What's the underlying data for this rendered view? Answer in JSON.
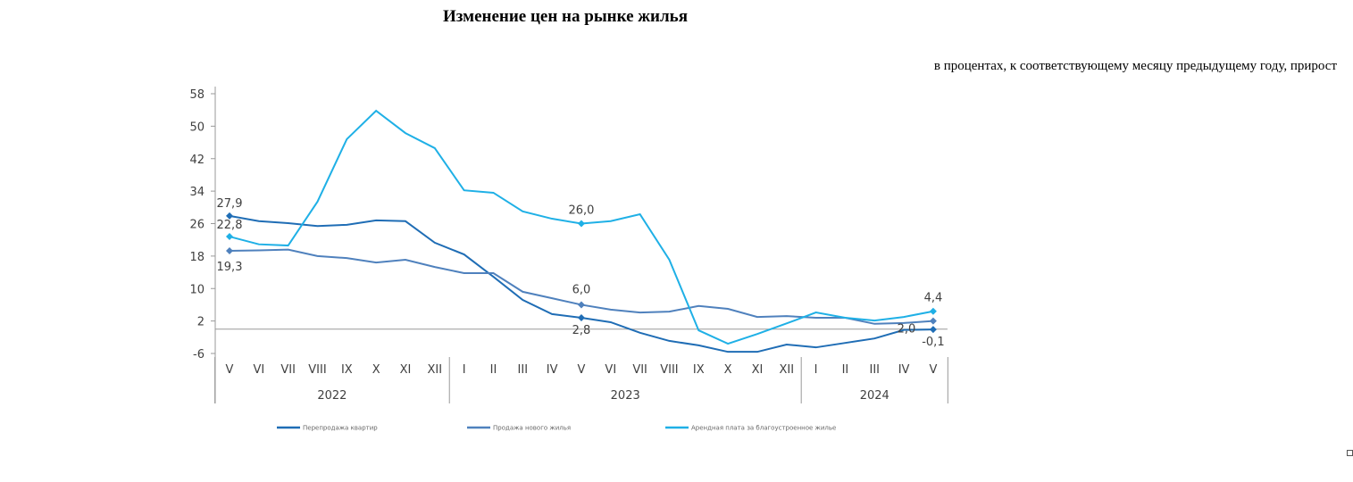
{
  "chart_data": {
    "type": "line",
    "title": "Изменение цен на рынке жилья",
    "subtitle": "в процентах, к соответствующему месяцу предыдущему году, прирост",
    "x": [
      "V",
      "VI",
      "VII",
      "VIII",
      "IX",
      "X",
      "XI",
      "XII",
      "I",
      "II",
      "III",
      "IV",
      "V",
      "VI",
      "VII",
      "VIII",
      "IX",
      "X",
      "XI",
      "XII",
      "I",
      "II",
      "III",
      "IV",
      "V"
    ],
    "year_groups": [
      {
        "label": "2022",
        "count": 8
      },
      {
        "label": "2023",
        "count": 12
      },
      {
        "label": "2024",
        "count": 5
      }
    ],
    "ylim": [
      -6,
      58
    ],
    "yticks": [
      -6,
      2,
      10,
      18,
      26,
      34,
      42,
      50,
      58
    ],
    "grid": false,
    "legend": "bottom",
    "series": [
      {
        "name": "Перепродажа квартир",
        "color": "#1f6db5",
        "values": [
          27.9,
          26.6,
          26.1,
          25.4,
          25.7,
          26.8,
          26.6,
          21.3,
          18.4,
          12.9,
          7.2,
          3.7,
          2.8,
          1.7,
          -0.9,
          -2.9,
          -4.0,
          -5.6,
          -5.6,
          -3.8,
          -4.5,
          -3.4,
          -2.3,
          -0.2,
          -0.1
        ],
        "labels": [
          {
            "i": 0,
            "text": "27,9"
          },
          {
            "i": 12,
            "text": "2,8"
          },
          {
            "i": 24,
            "text": "-0,1"
          }
        ]
      },
      {
        "name": "Продажа нового жилья",
        "color": "#4f81bd",
        "values": [
          19.3,
          19.4,
          19.6,
          18.0,
          17.5,
          16.4,
          17.1,
          15.3,
          13.8,
          13.8,
          9.2,
          7.6,
          6.0,
          4.8,
          4.1,
          4.3,
          5.7,
          5.0,
          3.0,
          3.2,
          2.8,
          2.8,
          1.3,
          1.5,
          2.0
        ],
        "labels": [
          {
            "i": 0,
            "text": "19,3"
          },
          {
            "i": 12,
            "text": "6,0"
          },
          {
            "i": 24,
            "text": "2,0"
          }
        ]
      },
      {
        "name": "Арендная плата за благоустроенное жилье",
        "color": "#1fb0e6",
        "values": [
          22.8,
          20.9,
          20.6,
          31.4,
          46.8,
          53.8,
          48.3,
          44.6,
          34.2,
          33.6,
          29.0,
          27.2,
          26.0,
          26.6,
          28.3,
          17.1,
          -0.3,
          -3.6,
          -1.2,
          1.4,
          4.1,
          2.8,
          2.1,
          3.0,
          4.4
        ],
        "labels": [
          {
            "i": 0,
            "text": "22,8"
          },
          {
            "i": 12,
            "text": "26,0"
          },
          {
            "i": 24,
            "text": "4,4"
          }
        ]
      }
    ]
  }
}
